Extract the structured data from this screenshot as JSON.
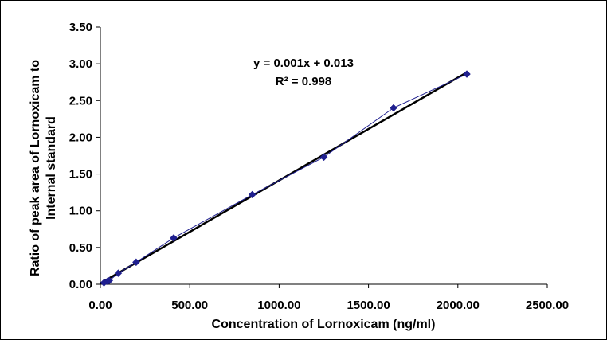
{
  "chart_data": {
    "type": "scatter",
    "title": "",
    "xlabel": "Concentration of Lornoxicam (ng/ml)",
    "ylabel_lines": [
      "Ratio of peak area of Lornoxicam to",
      "Internal standard"
    ],
    "xlim": [
      0,
      2500
    ],
    "ylim": [
      0,
      3.5
    ],
    "x_ticks": [
      "0.00",
      "500.00",
      "1000.00",
      "1500.00",
      "2000.00",
      "2500.00"
    ],
    "y_ticks": [
      "0.00",
      "0.50",
      "1.00",
      "1.50",
      "2.00",
      "2.50",
      "3.00",
      "3.50"
    ],
    "grid": false,
    "series": [
      {
        "marker": "diamond",
        "color": "#1f1f8f",
        "connected": true,
        "x": [
          20,
          40,
          50,
          100,
          200,
          410,
          850,
          1250,
          1640,
          2050
        ],
        "y": [
          0.02,
          0.04,
          0.05,
          0.15,
          0.3,
          0.63,
          1.22,
          1.73,
          2.4,
          2.86
        ]
      }
    ],
    "trendline": {
      "type": "linear",
      "slope": 0.0014,
      "intercept": 0.013,
      "x_range": [
        0,
        2050
      ],
      "color": "#000000"
    },
    "annotations": {
      "equation": "y = 0.001x + 0.013",
      "r_squared": "R² = 0.998"
    }
  }
}
